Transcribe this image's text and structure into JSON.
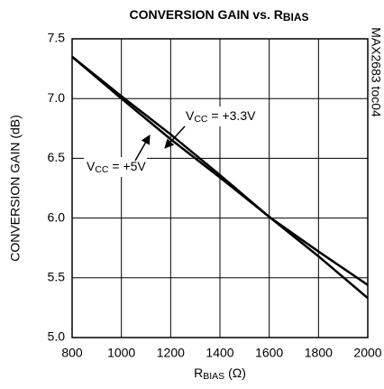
{
  "chart_data": {
    "type": "line",
    "title": [
      "CONVERSION GAIN vs. R",
      "BIAS"
    ],
    "x_label": [
      "R",
      "BIAS",
      " (Ω)"
    ],
    "y_label": "CONVERSION GAIN (dB)",
    "side_note": "MAX2683 toc04",
    "x": [
      800,
      1000,
      1200,
      1400,
      1600,
      1800,
      2000
    ],
    "series": [
      {
        "name": [
          "V",
          "CC",
          " = +3.3V"
        ],
        "color": "#000000",
        "values": [
          7.35,
          7.02,
          6.7,
          6.36,
          6.01,
          5.68,
          5.33
        ]
      },
      {
        "name": [
          "V",
          "CC",
          " = +5V"
        ],
        "color": "#000000",
        "values": [
          7.35,
          7.0,
          6.66,
          6.34,
          6.01,
          5.72,
          5.44
        ]
      }
    ],
    "xlim": [
      800,
      2000
    ],
    "xticks": [
      800,
      1000,
      1200,
      1400,
      1600,
      1800,
      2000
    ],
    "ylim": [
      5.0,
      7.5
    ],
    "yticks": [
      {
        "value": 5.0,
        "label": "5.0"
      },
      5.5,
      {
        "value": 6.0,
        "label": "6.0"
      },
      6.5,
      {
        "value": 7.0,
        "label": "7.0"
      },
      7.5
    ],
    "grid": true
  }
}
